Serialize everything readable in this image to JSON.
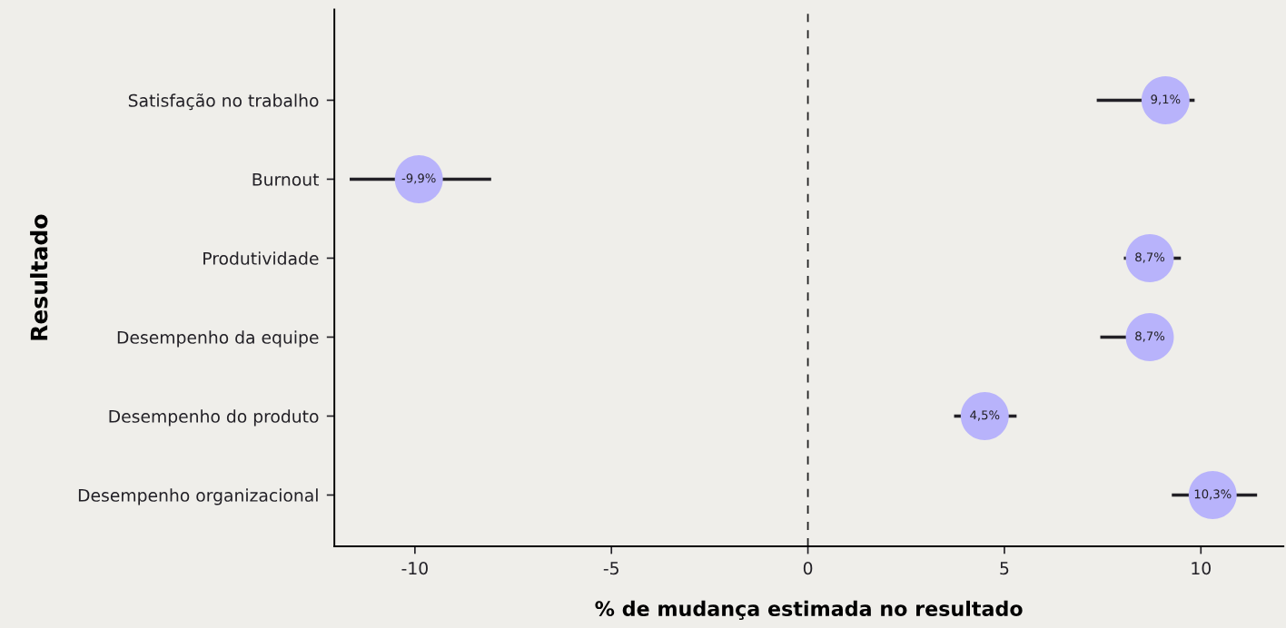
{
  "chart_data": {
    "type": "scatter",
    "orientation": "horizontal",
    "xlabel": "% de mudança estimada no resultado",
    "ylabel": "Resultado",
    "categories": [
      "Satisfação no trabalho",
      "Burnout",
      "Produtividade",
      "Desempenho da equipe",
      "Desempenho do produto",
      "Desempenho organizacional"
    ],
    "values": [
      9.1,
      -9.9,
      8.7,
      8.7,
      4.5,
      10.3
    ],
    "value_labels": [
      "9,1%",
      "-9,9%",
      "8,7%",
      "8,7%",
      "4,5%",
      "10,3%"
    ],
    "errors": [
      [
        7.35,
        9.84
      ],
      [
        -11.66,
        -8.06
      ],
      [
        8.04,
        9.49
      ],
      [
        7.44,
        8.98
      ],
      [
        3.72,
        5.31
      ],
      [
        9.26,
        11.43
      ]
    ],
    "color": "#b8b3fb",
    "xlim": [
      -12.05,
      12.1
    ],
    "xticks": [
      {
        "value": -10,
        "label": "-10"
      },
      {
        "value": -5,
        "label": "-5"
      },
      0,
      5,
      10
    ],
    "ref_lines": [
      {
        "axis": "x",
        "value": 0,
        "color": "#222222",
        "line_style": "dashed"
      }
    ],
    "grid": false,
    "marker": "circle"
  }
}
